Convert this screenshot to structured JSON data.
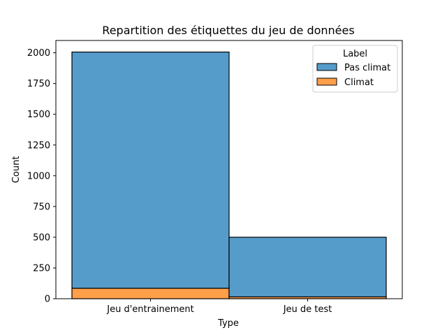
{
  "chart_data": {
    "type": "bar",
    "stacked": true,
    "title": "Repartition des étiquettes du jeu de données",
    "xlabel": "Type",
    "ylabel": "Count",
    "categories": [
      "Jeu d'entrainement",
      "Jeu de test"
    ],
    "series": [
      {
        "name": "Climat",
        "values": [
          85,
          15
        ],
        "color": "#ff9f4a"
      },
      {
        "name": "Pas climat",
        "values": [
          1921,
          485
        ],
        "color": "#569ccb"
      }
    ],
    "ylim": [
      0,
      2100
    ],
    "yticks": [
      0,
      250,
      500,
      750,
      1000,
      1250,
      1500,
      1750,
      2000
    ],
    "legend": {
      "title": "Label",
      "placement": "top-right",
      "entries": [
        {
          "label": "Pas climat",
          "color": "#569ccb"
        },
        {
          "label": "Climat",
          "color": "#ff9f4a"
        }
      ]
    },
    "grid": false
  }
}
